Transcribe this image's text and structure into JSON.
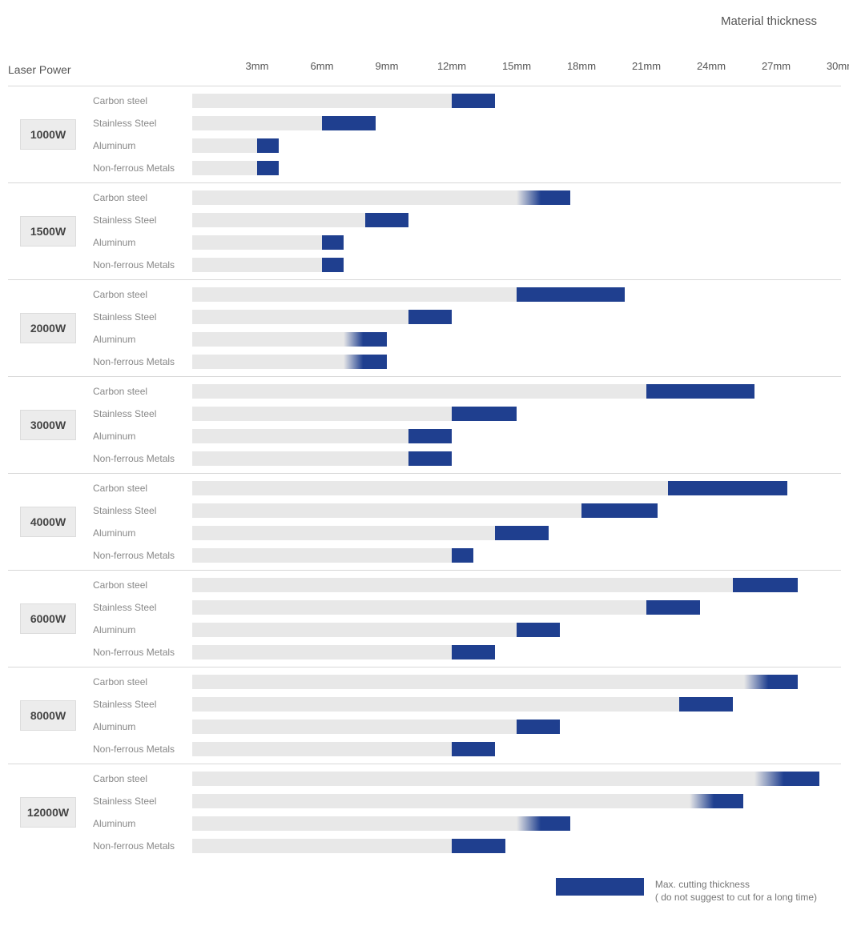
{
  "title": "Material thickness",
  "column_label": "Laser Power",
  "colors": {
    "bar_base": "#e8e8e8",
    "bar_max": "#1f3f8f",
    "bar_max_fade": true,
    "background": "#ffffff",
    "grid": "#d8d8d8",
    "text": "#555555",
    "text_muted": "#888888",
    "power_box_bg": "#ececec",
    "power_box_border": "#dcdcdc"
  },
  "typography": {
    "font_family": "Arial",
    "title_size_pt": 15,
    "axis_size_pt": 13,
    "material_size_pt": 12,
    "power_size_pt": 14
  },
  "axis": {
    "min": 0,
    "max": 30,
    "unit": "mm",
    "ticks": [
      3,
      6,
      9,
      12,
      15,
      18,
      21,
      24,
      27,
      30
    ]
  },
  "materials": [
    "Carbon steel",
    "Stainless Steel",
    "Aluminum",
    "Non-ferrous Metals"
  ],
  "legend": {
    "swatch_color": "#1f3f8f",
    "line1": "Max. cutting thickness",
    "line2": "( do not suggest to cut for a long time)"
  },
  "groups": [
    {
      "power": "1000W",
      "rows": [
        {
          "material": "Carbon steel",
          "base": 12,
          "max": 14,
          "fade": false
        },
        {
          "material": "Stainless Steel",
          "base": 6,
          "max": 8.5,
          "fade": false
        },
        {
          "material": "Aluminum",
          "base": 3,
          "max": 4,
          "fade": false
        },
        {
          "material": "Non-ferrous Metals",
          "base": 3,
          "max": 4,
          "fade": false
        }
      ]
    },
    {
      "power": "1500W",
      "rows": [
        {
          "material": "Carbon steel",
          "base": 15,
          "max": 17.5,
          "fade": true
        },
        {
          "material": "Stainless Steel",
          "base": 8,
          "max": 10,
          "fade": false
        },
        {
          "material": "Aluminum",
          "base": 6,
          "max": 7,
          "fade": false
        },
        {
          "material": "Non-ferrous Metals",
          "base": 6,
          "max": 7,
          "fade": false
        }
      ]
    },
    {
      "power": "2000W",
      "rows": [
        {
          "material": "Carbon steel",
          "base": 15,
          "max": 20,
          "fade": false
        },
        {
          "material": "Stainless Steel",
          "base": 10,
          "max": 12,
          "fade": false
        },
        {
          "material": "Aluminum",
          "base": 7,
          "max": 9,
          "fade": true
        },
        {
          "material": "Non-ferrous Metals",
          "base": 7,
          "max": 9,
          "fade": true
        }
      ]
    },
    {
      "power": "3000W",
      "rows": [
        {
          "material": "Carbon steel",
          "base": 21,
          "max": 26,
          "fade": false
        },
        {
          "material": "Stainless Steel",
          "base": 12,
          "max": 15,
          "fade": false
        },
        {
          "material": "Aluminum",
          "base": 10,
          "max": 12,
          "fade": false
        },
        {
          "material": "Non-ferrous Metals",
          "base": 10,
          "max": 12,
          "fade": false
        }
      ]
    },
    {
      "power": "4000W",
      "rows": [
        {
          "material": "Carbon steel",
          "base": 22,
          "max": 27.5,
          "fade": false
        },
        {
          "material": "Stainless Steel",
          "base": 18,
          "max": 21.5,
          "fade": false
        },
        {
          "material": "Aluminum",
          "base": 14,
          "max": 16.5,
          "fade": false
        },
        {
          "material": "Non-ferrous Metals",
          "base": 12,
          "max": 13,
          "fade": false
        }
      ]
    },
    {
      "power": "6000W",
      "rows": [
        {
          "material": "Carbon steel",
          "base": 25,
          "max": 28,
          "fade": false
        },
        {
          "material": "Stainless Steel",
          "base": 21,
          "max": 23.5,
          "fade": false
        },
        {
          "material": "Aluminum",
          "base": 15,
          "max": 17,
          "fade": false
        },
        {
          "material": "Non-ferrous Metals",
          "base": 12,
          "max": 14,
          "fade": false
        }
      ]
    },
    {
      "power": "8000W",
      "rows": [
        {
          "material": "Carbon steel",
          "base": 25.5,
          "max": 28,
          "fade": true
        },
        {
          "material": "Stainless Steel",
          "base": 22.5,
          "max": 25,
          "fade": false
        },
        {
          "material": "Aluminum",
          "base": 15,
          "max": 17,
          "fade": false
        },
        {
          "material": "Non-ferrous Metals",
          "base": 12,
          "max": 14,
          "fade": false
        }
      ]
    },
    {
      "power": "12000W",
      "rows": [
        {
          "material": "Carbon steel",
          "base": 26,
          "max": 29,
          "fade": true
        },
        {
          "material": "Stainless Steel",
          "base": 23,
          "max": 25.5,
          "fade": true
        },
        {
          "material": "Aluminum",
          "base": 15,
          "max": 17.5,
          "fade": true
        },
        {
          "material": "Non-ferrous Metals",
          "base": 12,
          "max": 14.5,
          "fade": false
        }
      ]
    }
  ]
}
